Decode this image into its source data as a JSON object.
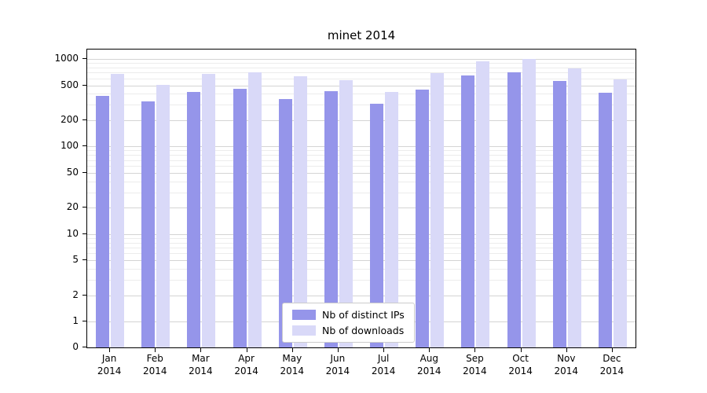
{
  "chart_data": {
    "type": "bar",
    "title": "minet 2014",
    "yscale": "symlog",
    "grid": true,
    "legend_position": "lower center",
    "year_label": "2014",
    "categories": [
      "Jan",
      "Feb",
      "Mar",
      "Apr",
      "May",
      "Jun",
      "Jul",
      "Aug",
      "Sep",
      "Oct",
      "Nov",
      "Dec"
    ],
    "y_ticks": [
      0,
      1,
      2,
      5,
      10,
      20,
      50,
      100,
      200,
      500,
      1000
    ],
    "ylim": [
      0,
      1200
    ],
    "series": [
      {
        "name": "Nb of distinct IPs",
        "color": "#9595ea",
        "values": [
          380,
          330,
          420,
          460,
          350,
          430,
          310,
          450,
          650,
          700,
          560,
          410
        ]
      },
      {
        "name": "Nb of downloads",
        "color": "#d9d9f8",
        "values": [
          680,
          510,
          670,
          700,
          630,
          570,
          420,
          690,
          950,
          1000,
          780,
          590
        ]
      }
    ]
  }
}
